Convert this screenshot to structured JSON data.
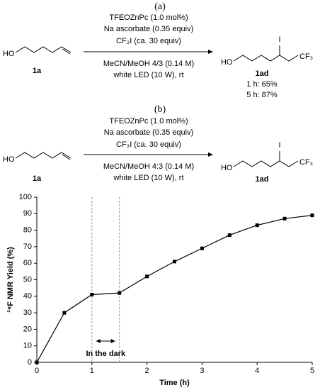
{
  "scheme_a": {
    "label": "(a)",
    "conditions_above": [
      "TFEOZnPc (1.0 mol%)",
      "Na ascorbate (0.35 equiv)",
      "CF₃I (ca. 30 equiv)"
    ],
    "conditions_below": [
      "MeCN/MeOH 4/3 (0.14 M)",
      "white LED (10 W), rt"
    ],
    "reactant": {
      "group": "HO",
      "label": "1a"
    },
    "product": {
      "groups": [
        "HO",
        "I",
        "CF₃"
      ],
      "label": "1ad",
      "yields": [
        "1 h: 65%",
        "5 h: 87%"
      ]
    }
  },
  "scheme_b": {
    "label": "(b)",
    "conditions_above": [
      "TFEOZnPc (1.0 mol%)",
      "Na ascorbate (0.35 equiv)",
      "CF₃I (ca. 30 equiv)"
    ],
    "conditions_below": [
      "MeCN/MeOH 4:3 (0.14 M)",
      "white LED (10 W), rt"
    ],
    "reactant": {
      "group": "HO",
      "label": "1a"
    },
    "product": {
      "groups": [
        "HO",
        "I",
        "CF₃"
      ],
      "label": "1ad"
    }
  },
  "chart_data": {
    "type": "line",
    "xlabel": "Time (h)",
    "ylabel": "¹⁹F NMR Yield (%)",
    "x": [
      0,
      0.5,
      1,
      1.5,
      2,
      2.5,
      3,
      3.5,
      4,
      4.5,
      5
    ],
    "values": [
      0,
      30,
      41,
      42,
      52,
      61,
      69,
      77,
      83,
      87,
      89
    ],
    "color": "#000000",
    "marker": "square",
    "xlim": [
      0,
      5
    ],
    "xticks": [
      0,
      1,
      2,
      3,
      4,
      5
    ],
    "ylim": [
      0,
      100
    ],
    "yticks": [
      0,
      10,
      20,
      30,
      40,
      50,
      60,
      70,
      80,
      90,
      100
    ],
    "annotation": "In the dark"
  }
}
